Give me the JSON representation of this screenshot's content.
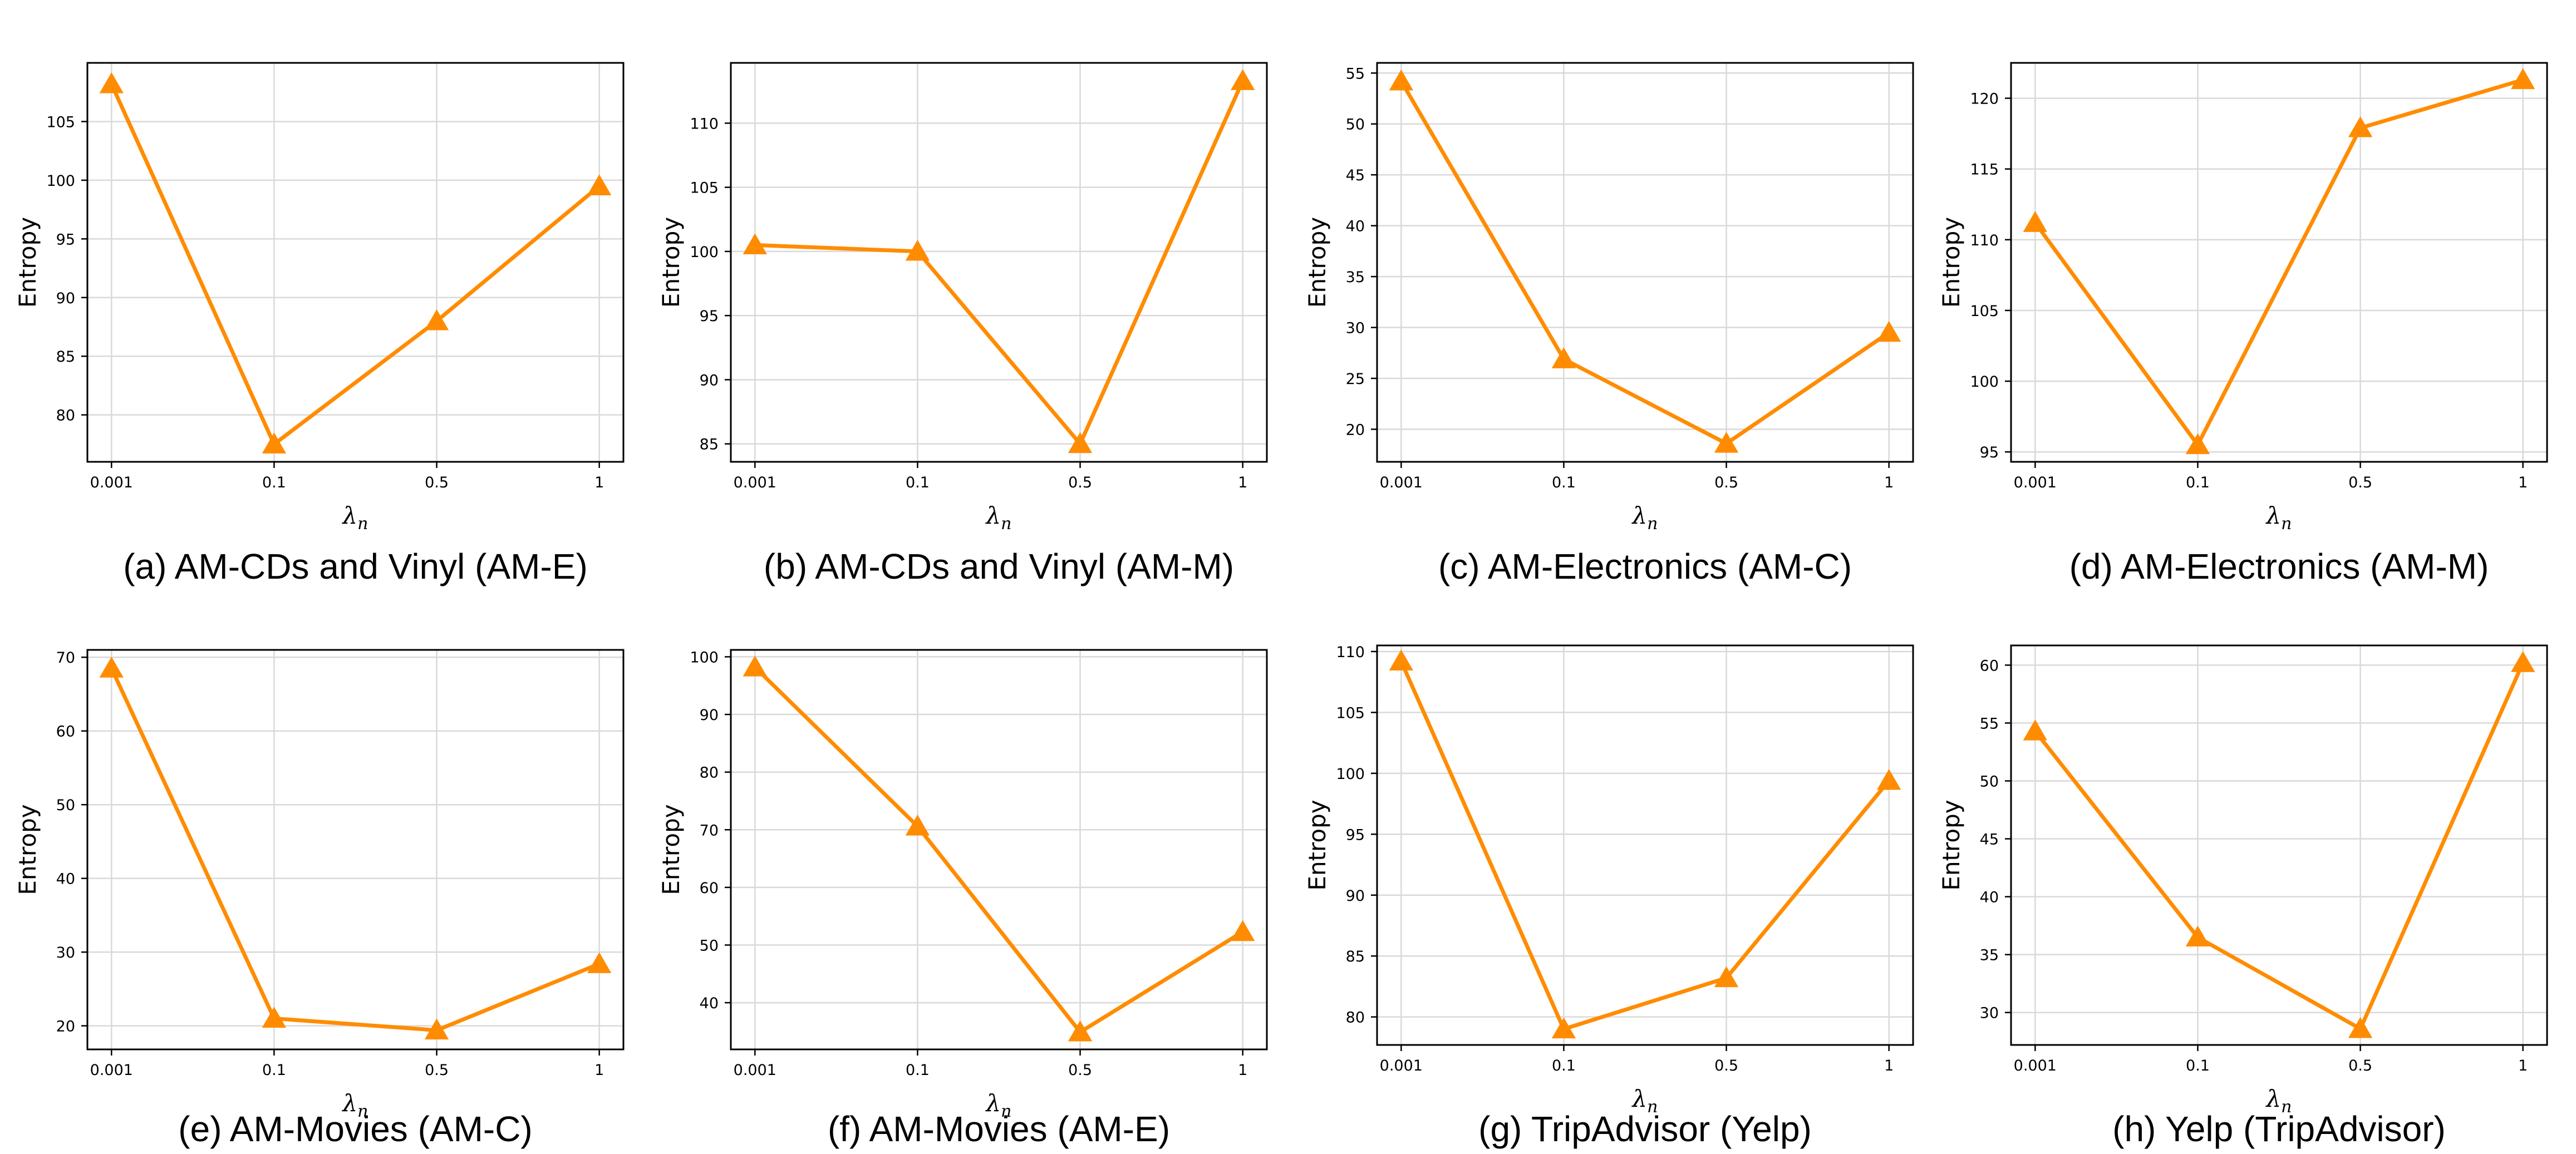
{
  "figure": {
    "colors": {
      "line": "#ff8c00",
      "marker": "#ff8c00",
      "axis": "#000000",
      "grid": "#d9d9d9"
    }
  },
  "chart_data": [
    {
      "type": "line",
      "caption": "(a) AM-CDs and Vinyl (AM-E)",
      "categories": [
        "0.001",
        "0.1",
        "0.5",
        "1"
      ],
      "series": [
        {
          "values": [
            108.2,
            77.5,
            88.0,
            99.5
          ]
        }
      ],
      "xlabel": "λn",
      "ylabel": "Entropy",
      "ylim": [
        76.0,
        110.0
      ],
      "yticks": [
        80,
        85,
        90,
        95,
        100,
        105
      ],
      "grid": true,
      "marker": "triangle"
    },
    {
      "type": "line",
      "caption": "(b) AM-CDs and Vinyl (AM-M)",
      "categories": [
        "0.001",
        "0.1",
        "0.5",
        "1"
      ],
      "series": [
        {
          "values": [
            100.5,
            100.0,
            85.0,
            113.3
          ]
        }
      ],
      "xlabel": "λn",
      "ylabel": "Entropy",
      "ylim": [
        83.6,
        114.7
      ],
      "yticks": [
        85,
        90,
        95,
        100,
        105,
        110
      ],
      "grid": true,
      "marker": "triangle"
    },
    {
      "type": "line",
      "caption": "(c) AM-Electronics (AM-C)",
      "categories": [
        "0.001",
        "0.1",
        "0.5",
        "1"
      ],
      "series": [
        {
          "values": [
            54.2,
            26.9,
            18.6,
            29.5
          ]
        }
      ],
      "xlabel": "λn",
      "ylabel": "Entropy",
      "ylim": [
        16.8,
        56.0
      ],
      "yticks": [
        20,
        25,
        30,
        35,
        40,
        45,
        50,
        55
      ],
      "grid": true,
      "marker": "triangle"
    },
    {
      "type": "line",
      "caption": "(d) AM-Electronics (AM-M)",
      "categories": [
        "0.001",
        "0.1",
        "0.5",
        "1"
      ],
      "series": [
        {
          "values": [
            111.2,
            95.5,
            117.9,
            121.3
          ]
        }
      ],
      "xlabel": "λn",
      "ylabel": "Entropy",
      "ylim": [
        94.3,
        122.5
      ],
      "yticks": [
        95,
        100,
        105,
        110,
        115,
        120
      ],
      "grid": true,
      "marker": "triangle"
    },
    {
      "type": "line",
      "caption": "(e) AM-Movies (AM-C)",
      "categories": [
        "0.001",
        "0.1",
        "0.5",
        "1"
      ],
      "series": [
        {
          "values": [
            68.5,
            21.0,
            19.4,
            28.4
          ]
        }
      ],
      "xlabel": "λn",
      "ylabel": "Entropy",
      "ylim": [
        16.8,
        71.0
      ],
      "yticks": [
        20,
        30,
        40,
        50,
        60,
        70
      ],
      "grid": true,
      "marker": "triangle"
    },
    {
      "type": "line",
      "caption": "(f) AM-Movies (AM-E)",
      "categories": [
        "0.001",
        "0.1",
        "0.5",
        "1"
      ],
      "series": [
        {
          "values": [
            98.2,
            70.6,
            34.9,
            52.3
          ]
        }
      ],
      "xlabel": "λn",
      "ylabel": "Entropy",
      "ylim": [
        31.9,
        101.2
      ],
      "yticks": [
        40,
        50,
        60,
        70,
        80,
        90,
        100
      ],
      "grid": true,
      "marker": "triangle"
    },
    {
      "type": "line",
      "caption": "(g) TripAdvisor (Yelp)",
      "categories": [
        "0.001",
        "0.1",
        "0.5",
        "1"
      ],
      "series": [
        {
          "values": [
            109.2,
            79.0,
            83.2,
            99.4
          ]
        }
      ],
      "xlabel": "λn",
      "ylabel": "Entropy",
      "ylim": [
        77.7,
        110.5
      ],
      "yticks": [
        80,
        85,
        90,
        95,
        100,
        105,
        110
      ],
      "grid": true,
      "marker": "triangle"
    },
    {
      "type": "line",
      "caption": "(h) Yelp (TripAdvisor)",
      "categories": [
        "0.001",
        "0.1",
        "0.5",
        "1"
      ],
      "series": [
        {
          "values": [
            54.3,
            36.5,
            28.6,
            60.2
          ]
        }
      ],
      "xlabel": "λn",
      "ylabel": "Entropy",
      "ylim": [
        27.2,
        61.7
      ],
      "yticks": [
        30,
        35,
        40,
        45,
        50,
        55,
        60
      ],
      "grid": true,
      "marker": "triangle"
    }
  ]
}
